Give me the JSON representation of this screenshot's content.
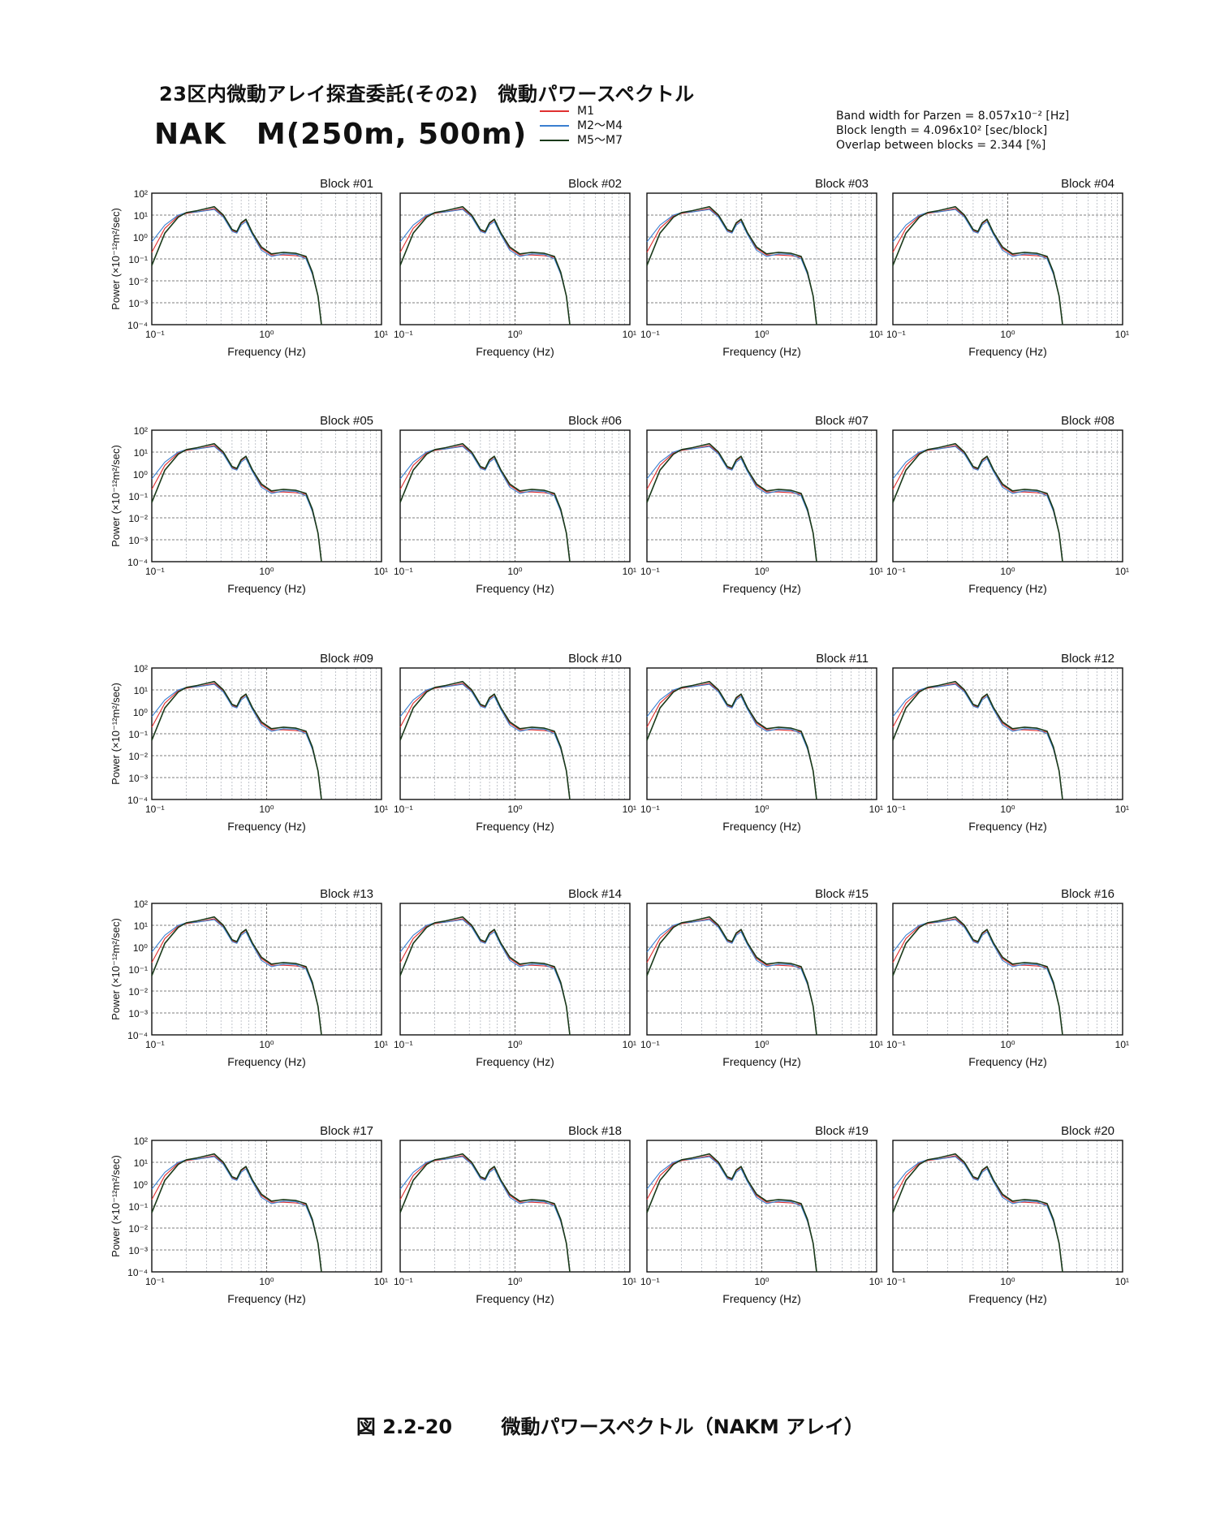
{
  "header": {
    "title": "23区内微動アレイ探査委託(その2)　微動パワースペクトル",
    "site": "NAK　M(250m, 500m)"
  },
  "legend": [
    {
      "label": "M1",
      "color": "#e03030"
    },
    {
      "label": "M2～M4",
      "color": "#3a7fd0"
    },
    {
      "label": "M5～M7",
      "color": "#1a3a1a"
    }
  ],
  "params": {
    "bandwidth": "Band width for Parzen = 8.057x10⁻² [Hz]",
    "block_length": "Block length = 4.096x10² [sec/block]",
    "overlap": "Overlap between blocks = 2.344 [%]"
  },
  "axes": {
    "xlabel": "Frequency (Hz)",
    "ylabel": "Power (×10⁻¹²m²/sec)",
    "x_ticks": [
      "10⁻¹",
      "10⁰",
      "10¹"
    ],
    "y_ticks": [
      "10²",
      "10¹",
      "10⁰",
      "10⁻¹",
      "10⁻²",
      "10⁻³",
      "10⁻⁴"
    ]
  },
  "caption": {
    "number": "図 2.2-20",
    "text": "微動パワースペクトル（NAKM アレイ）"
  },
  "chart_data": {
    "type": "line",
    "x_scale": "log",
    "y_scale": "log",
    "xlim": [
      0.1,
      10
    ],
    "ylim": [
      0.0001,
      100
    ],
    "grid": true,
    "legend_position": "top",
    "blocks": [
      "Block #01",
      "Block #02",
      "Block #03",
      "Block #04",
      "Block #05",
      "Block #06",
      "Block #07",
      "Block #08",
      "Block #09",
      "Block #10",
      "Block #11",
      "Block #12",
      "Block #13",
      "Block #14",
      "Block #15",
      "Block #16",
      "Block #17",
      "Block #18",
      "Block #19",
      "Block #20"
    ],
    "x": [
      0.1,
      0.13,
      0.17,
      0.2,
      0.25,
      0.3,
      0.35,
      0.42,
      0.5,
      0.55,
      0.6,
      0.66,
      0.75,
      0.9,
      1.1,
      1.4,
      1.8,
      2.2,
      2.5,
      2.8,
      3.0
    ],
    "series": [
      {
        "name": "M1",
        "values": [
          0.2,
          2.5,
          9,
          12,
          14,
          17,
          20,
          9,
          2,
          1.6,
          4,
          6,
          1.5,
          0.3,
          0.15,
          0.15,
          0.14,
          0.12,
          0.02,
          0.002,
          0.0001
        ]
      },
      {
        "name": "M2～M4",
        "values": [
          0.6,
          3.5,
          10,
          13,
          14,
          16,
          18,
          8,
          1.8,
          1.5,
          3.5,
          5,
          1.3,
          0.25,
          0.13,
          0.17,
          0.16,
          0.1,
          0.02,
          0.002,
          0.0001
        ]
      },
      {
        "name": "M5～M7",
        "values": [
          0.05,
          1.5,
          8,
          13,
          16,
          20,
          24,
          10,
          2.2,
          1.8,
          4.5,
          6.5,
          1.6,
          0.35,
          0.17,
          0.2,
          0.18,
          0.13,
          0.025,
          0.002,
          0.0001
        ]
      }
    ]
  }
}
